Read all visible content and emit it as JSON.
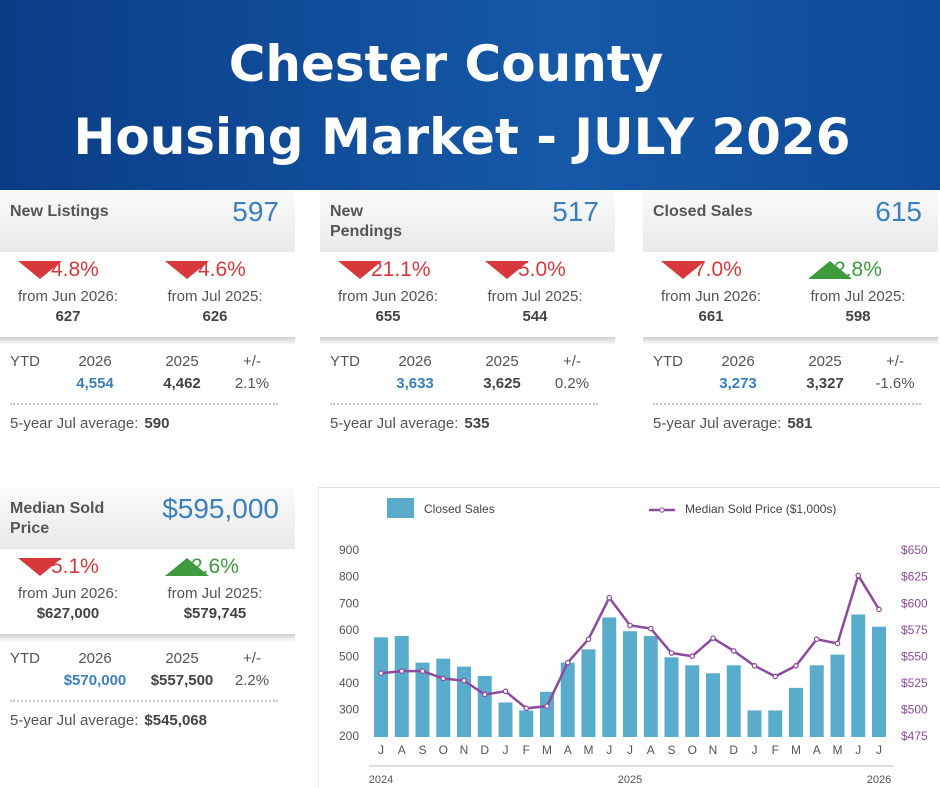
{
  "header": {
    "title_line1": "Chester County",
    "title_line2": "Housing Market - JULY 2026"
  },
  "cards": [
    {
      "title": "New Listings",
      "value": "597",
      "changes": [
        {
          "direction": "down",
          "percent": "-4.8%",
          "from": "from Jun 2026:",
          "value": "627"
        },
        {
          "direction": "down",
          "percent": "-4.6%",
          "from": "from Jul 2025:",
          "value": "626"
        }
      ],
      "ytd": {
        "label": "YTD",
        "headers": [
          "2026",
          "2025",
          "+/-"
        ],
        "values": [
          "4,554",
          "4,462",
          "2.1%"
        ]
      },
      "average": {
        "label": "5-year Jul average:",
        "value": "590"
      }
    },
    {
      "title": "New Pendings",
      "value": "517",
      "changes": [
        {
          "direction": "down",
          "percent": "-21.1%",
          "from": "from Jun 2026:",
          "value": "655"
        },
        {
          "direction": "down",
          "percent": "-5.0%",
          "from": "from Jul 2025:",
          "value": "544"
        }
      ],
      "ytd": {
        "label": "YTD",
        "headers": [
          "2026",
          "2025",
          "+/-"
        ],
        "values": [
          "3,633",
          "3,625",
          "0.2%"
        ]
      },
      "average": {
        "label": "5-year Jul average:",
        "value": "535"
      }
    },
    {
      "title": "Closed Sales",
      "value": "615",
      "changes": [
        {
          "direction": "down",
          "percent": "-7.0%",
          "from": "from Jun 2026:",
          "value": "661"
        },
        {
          "direction": "up",
          "percent": "2.8%",
          "from": "from Jul 2025:",
          "value": "598"
        }
      ],
      "ytd": {
        "label": "YTD",
        "headers": [
          "2026",
          "2025",
          "+/-"
        ],
        "values": [
          "3,273",
          "3,327",
          "-1.6%"
        ]
      },
      "average": {
        "label": "5-year Jul average:",
        "value": "581"
      }
    },
    {
      "title": "Median Sold Price",
      "value": "$595,000",
      "changes": [
        {
          "direction": "down",
          "percent": "-5.1%",
          "from": "from Jun 2026:",
          "value": "$627,000"
        },
        {
          "direction": "up",
          "percent": "2.6%",
          "from": "from Jul 2025:",
          "value": "$579,745"
        }
      ],
      "ytd": {
        "label": "YTD",
        "headers": [
          "2026",
          "2025",
          "+/-"
        ],
        "values": [
          "$570,000",
          "$557,500",
          "2.2%"
        ]
      },
      "average": {
        "label": "5-year Jul average:",
        "value": "$545,068"
      }
    }
  ],
  "chart_data": {
    "type": "combo",
    "categories": [
      "J",
      "A",
      "S",
      "O",
      "N",
      "D",
      "J",
      "F",
      "M",
      "A",
      "M",
      "J",
      "J",
      "A",
      "S",
      "O",
      "N",
      "D",
      "J",
      "F",
      "M",
      "A",
      "M",
      "J",
      "J"
    ],
    "year_labels": [
      "2024",
      null,
      null,
      null,
      null,
      null,
      null,
      null,
      null,
      null,
      null,
      null,
      "2025",
      null,
      null,
      null,
      null,
      null,
      null,
      null,
      null,
      null,
      null,
      null,
      "2026"
    ],
    "series": [
      {
        "name": "Closed Sales",
        "type": "bar",
        "color": "#5aaccd",
        "values": [
          575,
          580,
          480,
          495,
          465,
          430,
          330,
          300,
          370,
          480,
          530,
          650,
          598,
          580,
          500,
          470,
          440,
          470,
          300,
          300,
          385,
          470,
          510,
          661,
          615
        ]
      },
      {
        "name": "Median Sold Price ($1,000s)",
        "type": "line",
        "axis": "y2",
        "color": "#8e4a9e",
        "values": [
          535,
          537,
          537,
          530,
          528,
          515,
          518,
          502,
          504,
          545,
          567,
          606,
          580,
          577,
          554,
          551,
          568,
          556,
          542,
          532,
          542,
          567,
          563,
          627,
          595
        ]
      }
    ],
    "ylim": [
      200,
      900
    ],
    "yticks": [
      200,
      300,
      400,
      500,
      600,
      700,
      800,
      900
    ],
    "y2lim": [
      475,
      650
    ],
    "y2ticks": [
      {
        "value": 475,
        "label": "$475"
      },
      {
        "value": 500,
        "label": "$500"
      },
      {
        "value": 525,
        "label": "$525"
      },
      {
        "value": 550,
        "label": "$550"
      },
      {
        "value": 575,
        "label": "$575"
      },
      {
        "value": 600,
        "label": "$600"
      },
      {
        "value": 625,
        "label": "$625"
      },
      {
        "value": 650,
        "label": "$650"
      }
    ]
  },
  "colors": {
    "up": "#3d9a3d",
    "down": "#d8383b"
  }
}
